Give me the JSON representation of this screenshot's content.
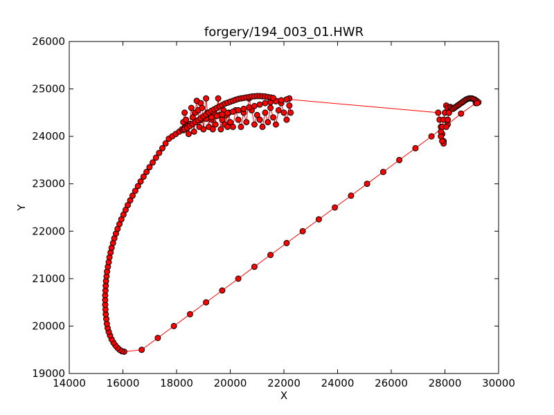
{
  "chart_data": {
    "type": "scatter",
    "title": "forgery/194_003_01.HWR",
    "xlabel": "X",
    "ylabel": "Y",
    "xlim": [
      14000,
      30000
    ],
    "ylim": [
      19000,
      26000
    ],
    "xticks": [
      14000,
      16000,
      18000,
      20000,
      22000,
      24000,
      26000,
      28000,
      30000
    ],
    "yticks": [
      19000,
      20000,
      21000,
      22000,
      23000,
      24000,
      25000,
      26000
    ],
    "xtick_labels": [
      "14000",
      "16000",
      "18000",
      "20000",
      "22000",
      "24000",
      "26000",
      "28000",
      "30000"
    ],
    "ytick_labels": [
      "19000",
      "20000",
      "21000",
      "22000",
      "23000",
      "24000",
      "25000",
      "26000"
    ],
    "grid": false,
    "colors": {
      "line": "#ff0000",
      "marker_fill": "#ff0000",
      "marker_edge": "#000000"
    },
    "series": [
      {
        "marker": "circle",
        "connected": true,
        "x": [
          29150,
          28600,
          28100,
          27500,
          26900,
          26300,
          25700,
          25100,
          24500,
          23900,
          23300,
          22700,
          22100,
          21500,
          20900,
          20300,
          19700,
          19100,
          18500,
          17900,
          17300,
          16700,
          16050,
          15960,
          15880,
          15800,
          15720,
          15650,
          15580,
          15520,
          15470,
          15430,
          15400,
          15380,
          15360,
          15350,
          15340,
          15340,
          15340,
          15350,
          15360,
          15370,
          15390,
          15410,
          15440,
          15470,
          15500,
          15540,
          15580,
          15630,
          15680,
          15740,
          15800,
          15870,
          15940,
          16020,
          16100,
          16180,
          16270,
          16360,
          16460,
          16560,
          16660,
          16770,
          16880,
          16990,
          17110,
          17230,
          17350,
          17470,
          17590,
          17710,
          17840,
          17970,
          18100,
          18200,
          18250,
          18300,
          18350,
          18450,
          18500,
          18550,
          18600,
          18650,
          18700,
          18750,
          18800,
          18850,
          18900,
          18950,
          19000,
          19050,
          19100,
          19150,
          19200,
          19250,
          19300,
          19350,
          19400,
          19450,
          19500,
          19550,
          19600,
          19650,
          19700,
          19750,
          19800,
          19850,
          19900,
          19950,
          20000,
          20100,
          20200,
          20300,
          20400,
          20500,
          20600,
          20700,
          20800,
          20900,
          21000,
          21100,
          21200,
          21300,
          21400,
          21500,
          21600,
          21700,
          21800,
          21900,
          22000,
          22100,
          22200,
          22250,
          22200,
          22100,
          21900,
          21700,
          21500,
          21300,
          21100,
          20900,
          20700,
          20500,
          20300,
          20100,
          19900,
          19700,
          19500,
          19300,
          19100,
          18900,
          18700,
          18500,
          18400,
          18300,
          18250,
          18300,
          18400,
          18500,
          18600,
          18700,
          18800,
          18900,
          19000,
          19100,
          19200,
          19300,
          19400,
          19500,
          19600,
          19700,
          19800,
          19900,
          20000,
          20100,
          20200,
          20300,
          20400,
          20500,
          20600,
          20700,
          20800,
          20900,
          21000,
          21100,
          21200,
          21300,
          21400,
          21500,
          21600,
          27750,
          27800,
          27850,
          27900,
          27950,
          27950,
          27900,
          27850,
          27850,
          27900,
          27950,
          28000,
          28050,
          28100,
          28150,
          28100,
          28050,
          28100,
          28150,
          28200,
          28250,
          28300,
          28350,
          28400,
          28450,
          28500,
          28550,
          28600,
          28650,
          28700,
          28750,
          28800,
          28850,
          28900,
          28950,
          29000,
          29050,
          29100,
          29150,
          29200,
          29250,
          29200
        ],
        "y": [
          24700,
          24480,
          24250,
          24000,
          23750,
          23500,
          23250,
          23000,
          22750,
          22500,
          22250,
          22000,
          21750,
          21500,
          21250,
          21000,
          20750,
          20500,
          20250,
          20000,
          19750,
          19500,
          19460,
          19470,
          19500,
          19540,
          19590,
          19650,
          19720,
          19800,
          19880,
          19960,
          20050,
          20150,
          20250,
          20350,
          20450,
          20550,
          20650,
          20750,
          20850,
          20950,
          21050,
          21150,
          21250,
          21350,
          21450,
          21550,
          21650,
          21750,
          21850,
          21950,
          22050,
          22150,
          22250,
          22350,
          22450,
          22550,
          22650,
          22750,
          22850,
          22950,
          23050,
          23150,
          23250,
          23350,
          23450,
          23550,
          23650,
          23750,
          23850,
          23950,
          24000,
          24050,
          24100,
          24150,
          24300,
          24500,
          24350,
          24050,
          24250,
          24600,
          24400,
          24100,
          24500,
          24750,
          24550,
          24200,
          24700,
          24600,
          24150,
          24400,
          24800,
          24500,
          24200,
          24450,
          24350,
          24150,
          24500,
          24250,
          24600,
          24800,
          24450,
          24150,
          24350,
          24550,
          24250,
          24450,
          24200,
          24500,
          24300,
          24200,
          24550,
          24350,
          24200,
          24500,
          24300,
          24800,
          24550,
          24250,
          24450,
          24350,
          24200,
          24500,
          24300,
          24600,
          24400,
          24250,
          24550,
          24700,
          24500,
          24350,
          24650,
          24500,
          24800,
          24780,
          24760,
          24740,
          24720,
          24700,
          24670,
          24640,
          24610,
          24580,
          24550,
          24520,
          24490,
          24460,
          24430,
          24400,
          24370,
          24340,
          24300,
          24260,
          24220,
          24180,
          24130,
          24150,
          24180,
          24220,
          24260,
          24300,
          24340,
          24380,
          24420,
          24460,
          24500,
          24540,
          24570,
          24600,
          24630,
          24660,
          24690,
          24710,
          24730,
          24750,
          24770,
          24790,
          24800,
          24810,
          24820,
          24830,
          24840,
          24845,
          24850,
          24850,
          24845,
          24840,
          24830,
          24820,
          24810,
          24500,
          24350,
          24200,
          24050,
          23900,
          23850,
          23900,
          24000,
          24100,
          24200,
          24350,
          24500,
          24650,
          24600,
          24500,
          24350,
          24200,
          24350,
          24500,
          24620,
          24600,
          24580,
          24600,
          24620,
          24640,
          24660,
          24680,
          24700,
          24720,
          24740,
          24760,
          24780,
          24790,
          24800,
          24800,
          24800,
          24790,
          24780,
          24760,
          24740,
          24720,
          24700
        ]
      }
    ]
  }
}
